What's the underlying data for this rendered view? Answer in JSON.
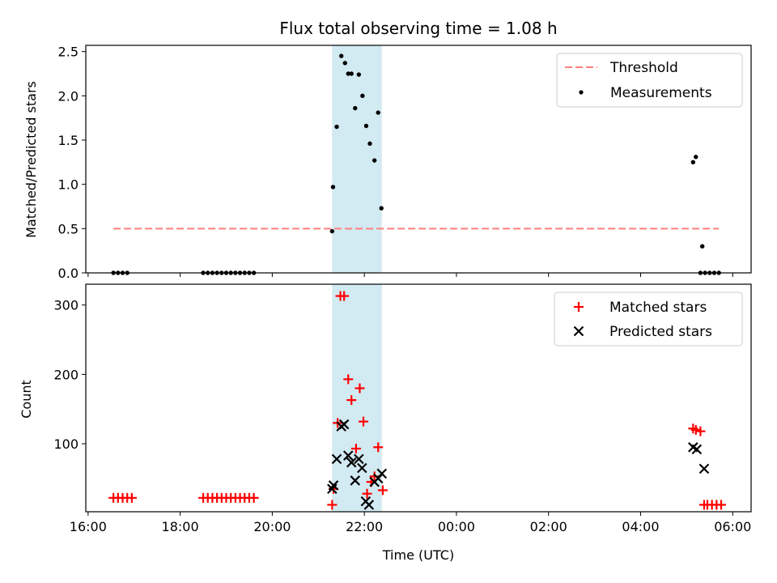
{
  "title": "Flux total observing time = 1.08 h",
  "xlabel": "Time (UTC)",
  "x_ticks": [
    {
      "t": 16,
      "label": "16:00"
    },
    {
      "t": 18,
      "label": "18:00"
    },
    {
      "t": 20,
      "label": "20:00"
    },
    {
      "t": 22,
      "label": "22:00"
    },
    {
      "t": 24,
      "label": "00:00"
    },
    {
      "t": 26,
      "label": "02:00"
    },
    {
      "t": 28,
      "label": "04:00"
    },
    {
      "t": 30,
      "label": "06:00"
    }
  ],
  "xlim": [
    15.95,
    30.4
  ],
  "highlight_span": [
    21.3,
    22.38
  ],
  "colors": {
    "span": "#add8e6",
    "threshold": "#ff7f7f",
    "measurement": "#000000",
    "matched": "#ff0000",
    "predicted": "#000000"
  },
  "chart_data": [
    {
      "type": "scatter",
      "ylabel": "Matched/Predicted stars",
      "ylim": [
        0,
        2.57
      ],
      "y_ticks": [
        "0.0",
        "0.5",
        "1.0",
        "1.5",
        "2.0",
        "2.5"
      ],
      "legend_position": "top-right",
      "legend": [
        "Threshold",
        "Measurements"
      ],
      "threshold": {
        "name": "Threshold",
        "value": 0.5,
        "x_range": [
          16.55,
          29.7
        ]
      },
      "series": [
        {
          "name": "Measurements",
          "x": [
            16.55,
            16.65,
            16.75,
            16.85,
            18.5,
            18.6,
            18.7,
            18.8,
            18.9,
            19.0,
            19.1,
            19.2,
            19.3,
            19.4,
            19.5,
            19.6,
            21.3,
            21.32,
            21.4,
            21.5,
            21.58,
            21.65,
            21.72,
            21.8,
            21.88,
            21.96,
            22.04,
            22.12,
            22.22,
            22.3,
            22.37,
            29.14,
            29.2,
            29.3,
            29.34,
            29.4,
            29.5,
            29.6,
            29.7
          ],
          "y": [
            0,
            0,
            0,
            0,
            0,
            0,
            0,
            0,
            0,
            0,
            0,
            0,
            0,
            0,
            0,
            0,
            0.47,
            0.97,
            1.65,
            2.45,
            2.37,
            2.25,
            2.25,
            1.86,
            2.24,
            2.0,
            1.66,
            1.46,
            1.27,
            1.81,
            0.73,
            1.25,
            1.31,
            0,
            0.3,
            0,
            0,
            0,
            0
          ]
        }
      ]
    },
    {
      "type": "scatter",
      "ylabel": "Count",
      "ylim": [
        2,
        330
      ],
      "y_ticks": [
        100,
        200,
        300
      ],
      "legend_position": "top-right",
      "legend": [
        "Matched stars",
        "Predicted stars"
      ],
      "series": [
        {
          "name": "Matched stars",
          "x": [
            16.55,
            16.65,
            16.75,
            16.85,
            16.95,
            18.5,
            18.6,
            18.7,
            18.8,
            18.9,
            19.0,
            19.1,
            19.2,
            19.3,
            19.4,
            19.5,
            19.6,
            21.3,
            21.33,
            21.42,
            21.48,
            21.56,
            21.65,
            21.72,
            21.82,
            21.9,
            21.98,
            22.06,
            22.15,
            22.22,
            22.3,
            22.4,
            29.14,
            29.2,
            29.3,
            29.38,
            29.45,
            29.55,
            29.65,
            29.75
          ],
          "y": [
            22,
            22,
            22,
            22,
            22,
            22,
            22,
            22,
            22,
            22,
            22,
            22,
            22,
            22,
            22,
            22,
            22,
            12,
            35,
            130,
            313,
            313,
            193,
            163,
            93,
            180,
            132,
            28,
            45,
            53,
            95,
            33,
            122,
            120,
            118,
            12,
            12,
            12,
            12,
            12
          ]
        },
        {
          "name": "Predicted stars",
          "x": [
            21.3,
            21.33,
            21.4,
            21.5,
            21.56,
            21.65,
            21.72,
            21.8,
            21.88,
            21.95,
            22.03,
            22.1,
            22.22,
            22.3,
            22.38,
            29.14,
            29.22,
            29.38
          ],
          "y": [
            35,
            40,
            78,
            125,
            128,
            83,
            73,
            47,
            78,
            65,
            17,
            12,
            45,
            50,
            57,
            95,
            92,
            64
          ]
        }
      ]
    }
  ]
}
